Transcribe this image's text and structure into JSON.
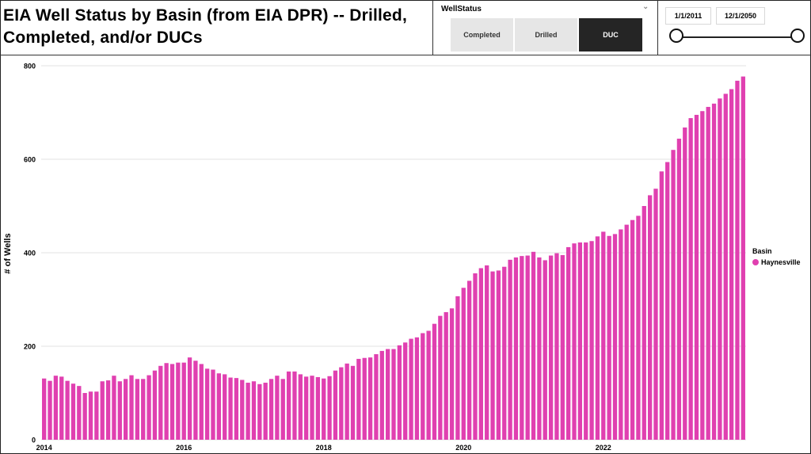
{
  "title": "EIA Well Status by Basin (from EIA DPR) -- Drilled, Completed, and/or DUCs",
  "slicer": {
    "title": "WellStatus",
    "options": [
      "Completed",
      "Drilled",
      "DUC"
    ],
    "selected": "DUC"
  },
  "date_range": {
    "start": "1/1/2011",
    "end": "12/1/2050"
  },
  "legend": {
    "title": "Basin",
    "item": "Haynesville"
  },
  "colors": {
    "bar": "#E040B0",
    "selected_bg": "#252525"
  },
  "chart_data": {
    "type": "bar",
    "ylabel": "# of Wells",
    "xlabel": "",
    "ylim": [
      0,
      800
    ],
    "yticks": [
      0,
      200,
      400,
      600,
      800
    ],
    "xticks": [
      "2014",
      "2016",
      "2018",
      "2020",
      "2022"
    ],
    "grid": true,
    "legend_position": "right",
    "start_month": "2014-01",
    "series": [
      {
        "name": "Haynesville",
        "values": [
          131,
          126,
          137,
          135,
          126,
          120,
          115,
          100,
          103,
          103,
          125,
          127,
          137,
          125,
          130,
          138,
          130,
          130,
          138,
          148,
          158,
          164,
          162,
          165,
          165,
          176,
          169,
          162,
          152,
          150,
          142,
          140,
          133,
          132,
          128,
          122,
          125,
          119,
          122,
          130,
          137,
          130,
          146,
          146,
          140,
          135,
          137,
          134,
          131,
          136,
          148,
          155,
          163,
          158,
          173,
          175,
          176,
          183,
          190,
          194,
          194,
          202,
          208,
          216,
          219,
          228,
          233,
          248,
          265,
          273,
          281,
          307,
          325,
          340,
          356,
          367,
          373,
          360,
          362,
          370,
          385,
          390,
          393,
          394,
          402,
          390,
          384,
          394,
          399,
          395,
          412,
          420,
          422,
          422,
          425,
          435,
          445,
          436,
          440,
          450,
          460,
          470,
          479,
          500,
          523,
          537,
          574,
          594,
          620,
          644,
          668,
          688,
          695,
          703,
          712,
          719,
          730,
          740,
          750,
          768,
          777
        ]
      }
    ]
  }
}
